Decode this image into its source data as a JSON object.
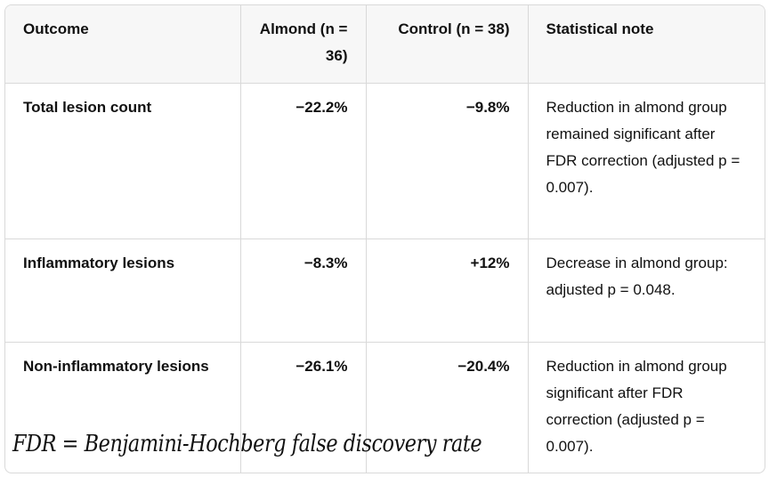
{
  "table": {
    "headers": [
      "Outcome",
      "Almond (n = 36)",
      "Control (n = 38)",
      "Statistical note"
    ],
    "rows": [
      {
        "outcome": "Total lesion count",
        "almond": "−22.2%",
        "control": "−9.8%",
        "note": "Reduction in almond group remained significant after FDR correction (adjusted p = 0.007)."
      },
      {
        "outcome": "Inflammatory lesions",
        "almond": "−8.3%",
        "control": "+12%",
        "note": "Decrease in almond group: adjusted p = 0.048."
      },
      {
        "outcome": "Non-inflammatory lesions",
        "almond": "−26.1%",
        "control": "−20.4%",
        "note": "Reduction in almond group significant after FDR correction (adjusted p = 0.007)."
      }
    ]
  },
  "footnote": "FDR = Benjamini-Hochberg false discovery rate"
}
